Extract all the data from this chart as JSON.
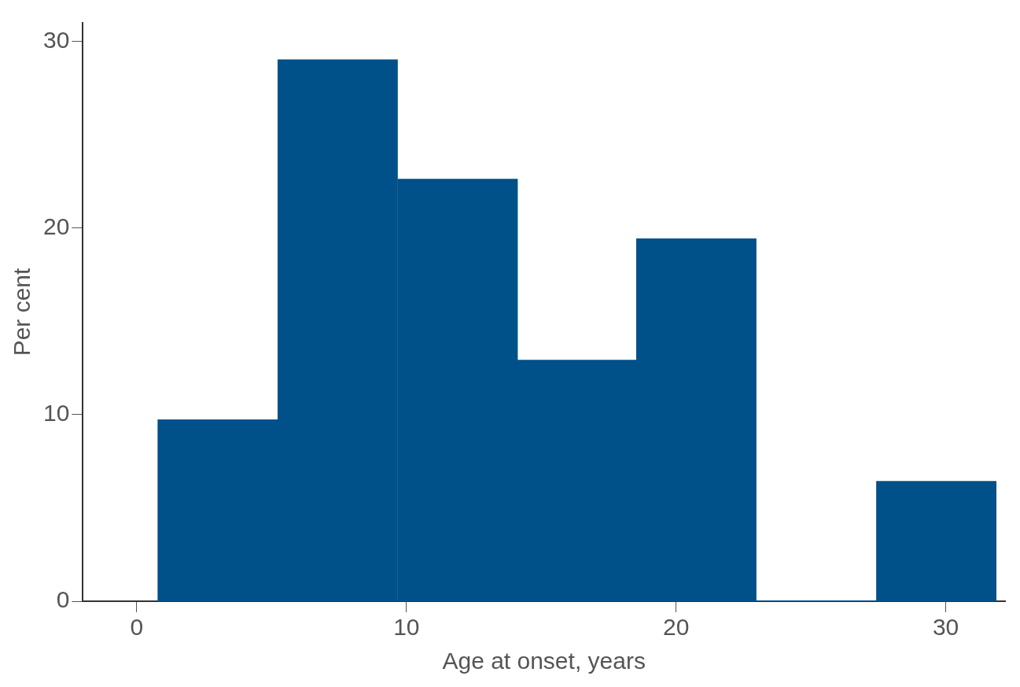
{
  "chart_data": {
    "type": "histogram",
    "xlabel": "Age at onset, years",
    "ylabel": "Per cent",
    "bins": [
      0.8,
      5.2,
      9.7,
      14.1,
      18.5,
      23.0,
      27.4,
      31.9
    ],
    "values": [
      9.7,
      29.0,
      22.6,
      12.9,
      19.4,
      0,
      6.4
    ],
    "color": "#00508a",
    "xlim": [
      -2,
      32.2
    ],
    "xticks": [
      0,
      10,
      20,
      30
    ],
    "ylim": [
      0,
      31
    ],
    "yticks": [
      0,
      10,
      20,
      30
    ],
    "grid": false,
    "legend": false
  }
}
